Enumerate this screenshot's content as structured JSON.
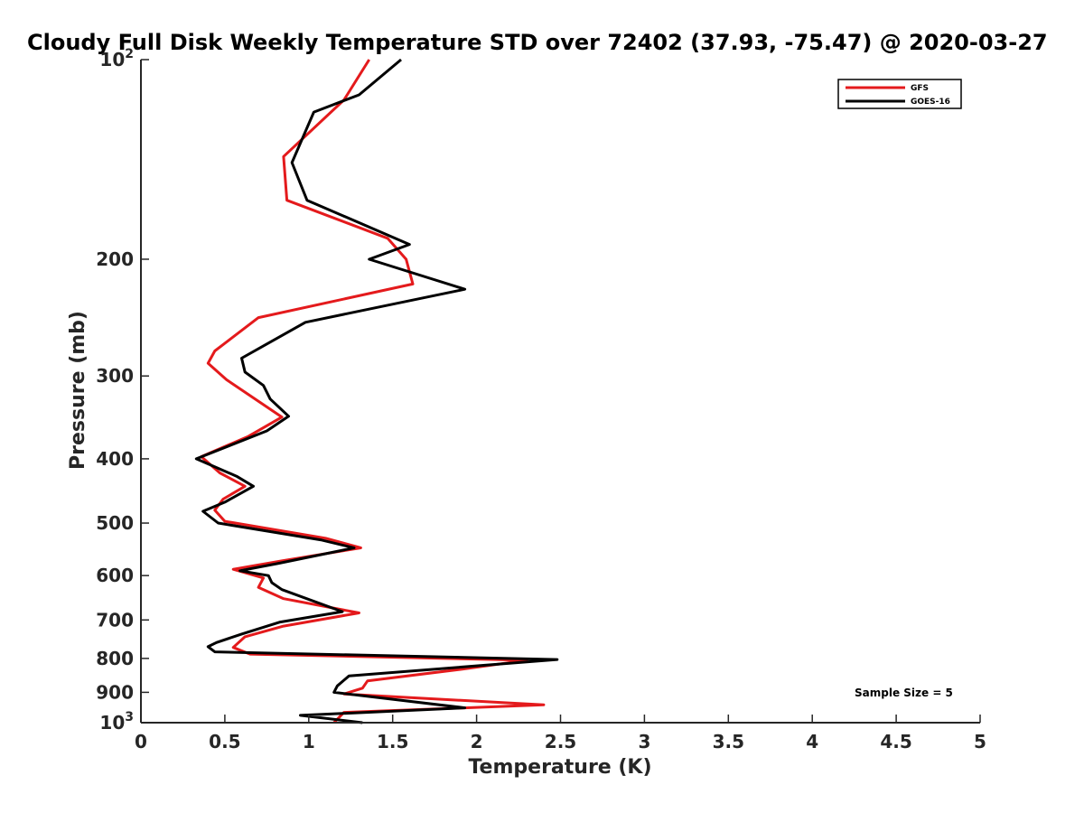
{
  "chart_data": {
    "type": "line",
    "title": "Cloudy Full Disk Weekly Temperature STD over 72402 (37.93, -75.47) @ 2020-03-27",
    "xlabel": "Temperature (K)",
    "ylabel": "Pressure (mb)",
    "xlim": [
      0,
      5
    ],
    "ylim": [
      100,
      1000
    ],
    "y_scale": "log",
    "y_reversed": true,
    "grid": false,
    "legend_position": "top-right",
    "x_ticks": [
      {
        "value": 0,
        "label": "0"
      },
      {
        "value": 0.5,
        "label": "0.5"
      },
      {
        "value": 1,
        "label": "1"
      },
      {
        "value": 1.5,
        "label": "1.5"
      },
      {
        "value": 2,
        "label": "2"
      },
      {
        "value": 2.5,
        "label": "2.5"
      },
      {
        "value": 3,
        "label": "3"
      },
      {
        "value": 3.5,
        "label": "3.5"
      },
      {
        "value": 4,
        "label": "4"
      },
      {
        "value": 4.5,
        "label": "4.5"
      },
      {
        "value": 5,
        "label": "5"
      }
    ],
    "y_ticks": [
      {
        "value": 100,
        "label": "10",
        "sup": "2"
      },
      {
        "value": 200,
        "label": "200"
      },
      {
        "value": 300,
        "label": "300"
      },
      {
        "value": 400,
        "label": "400"
      },
      {
        "value": 500,
        "label": "500"
      },
      {
        "value": 600,
        "label": "600"
      },
      {
        "value": 700,
        "label": "700"
      },
      {
        "value": 800,
        "label": "800"
      },
      {
        "value": 900,
        "label": "900"
      },
      {
        "value": 1000,
        "label": "10",
        "sup": "3"
      }
    ],
    "series": [
      {
        "name": "GFS",
        "color": "#e41a1c",
        "points": [
          [
            1.36,
            100
          ],
          [
            1.21,
            115
          ],
          [
            0.85,
            140
          ],
          [
            0.87,
            163
          ],
          [
            1.47,
            186
          ],
          [
            1.58,
            200
          ],
          [
            1.62,
            218
          ],
          [
            0.7,
            245
          ],
          [
            0.44,
            275
          ],
          [
            0.4,
            287
          ],
          [
            0.51,
            304
          ],
          [
            0.84,
            346
          ],
          [
            0.64,
            370
          ],
          [
            0.36,
            397
          ],
          [
            0.47,
            420
          ],
          [
            0.62,
            440
          ],
          [
            0.49,
            460
          ],
          [
            0.44,
            478
          ],
          [
            0.5,
            497
          ],
          [
            1.1,
            527
          ],
          [
            1.31,
            545
          ],
          [
            0.84,
            570
          ],
          [
            0.55,
            587
          ],
          [
            0.73,
            605
          ],
          [
            0.7,
            625
          ],
          [
            0.85,
            650
          ],
          [
            1.3,
            683
          ],
          [
            0.85,
            715
          ],
          [
            0.62,
            742
          ],
          [
            0.55,
            770
          ],
          [
            0.65,
            788
          ],
          [
            2.3,
            805
          ],
          [
            1.92,
            830
          ],
          [
            1.35,
            865
          ],
          [
            1.32,
            887
          ],
          [
            1.21,
            905
          ],
          [
            2.4,
            940
          ],
          [
            1.21,
            965
          ],
          [
            1.15,
            1000
          ]
        ]
      },
      {
        "name": "GOES-16",
        "color": "#000000",
        "points": [
          [
            1.55,
            100
          ],
          [
            1.3,
            113
          ],
          [
            1.03,
            120
          ],
          [
            0.9,
            143
          ],
          [
            0.99,
            163
          ],
          [
            1.6,
            190
          ],
          [
            1.36,
            200
          ],
          [
            1.93,
            222
          ],
          [
            0.98,
            249
          ],
          [
            0.6,
            282
          ],
          [
            0.62,
            296
          ],
          [
            0.73,
            310
          ],
          [
            0.77,
            325
          ],
          [
            0.88,
            345
          ],
          [
            0.75,
            363
          ],
          [
            0.33,
            400
          ],
          [
            0.57,
            425
          ],
          [
            0.67,
            440
          ],
          [
            0.5,
            465
          ],
          [
            0.37,
            480
          ],
          [
            0.46,
            500
          ],
          [
            1.07,
            530
          ],
          [
            1.27,
            545
          ],
          [
            0.82,
            575
          ],
          [
            0.59,
            590
          ],
          [
            0.76,
            600
          ],
          [
            0.78,
            615
          ],
          [
            0.84,
            630
          ],
          [
            1.2,
            680
          ],
          [
            0.83,
            705
          ],
          [
            0.6,
            735
          ],
          [
            0.45,
            757
          ],
          [
            0.4,
            768
          ],
          [
            0.44,
            782
          ],
          [
            2.48,
            803
          ],
          [
            1.24,
            850
          ],
          [
            1.17,
            880
          ],
          [
            1.15,
            900
          ],
          [
            1.93,
            950
          ],
          [
            0.95,
            975
          ],
          [
            1.32,
            1000
          ]
        ]
      }
    ],
    "annotation": "Sample Size = 5"
  }
}
